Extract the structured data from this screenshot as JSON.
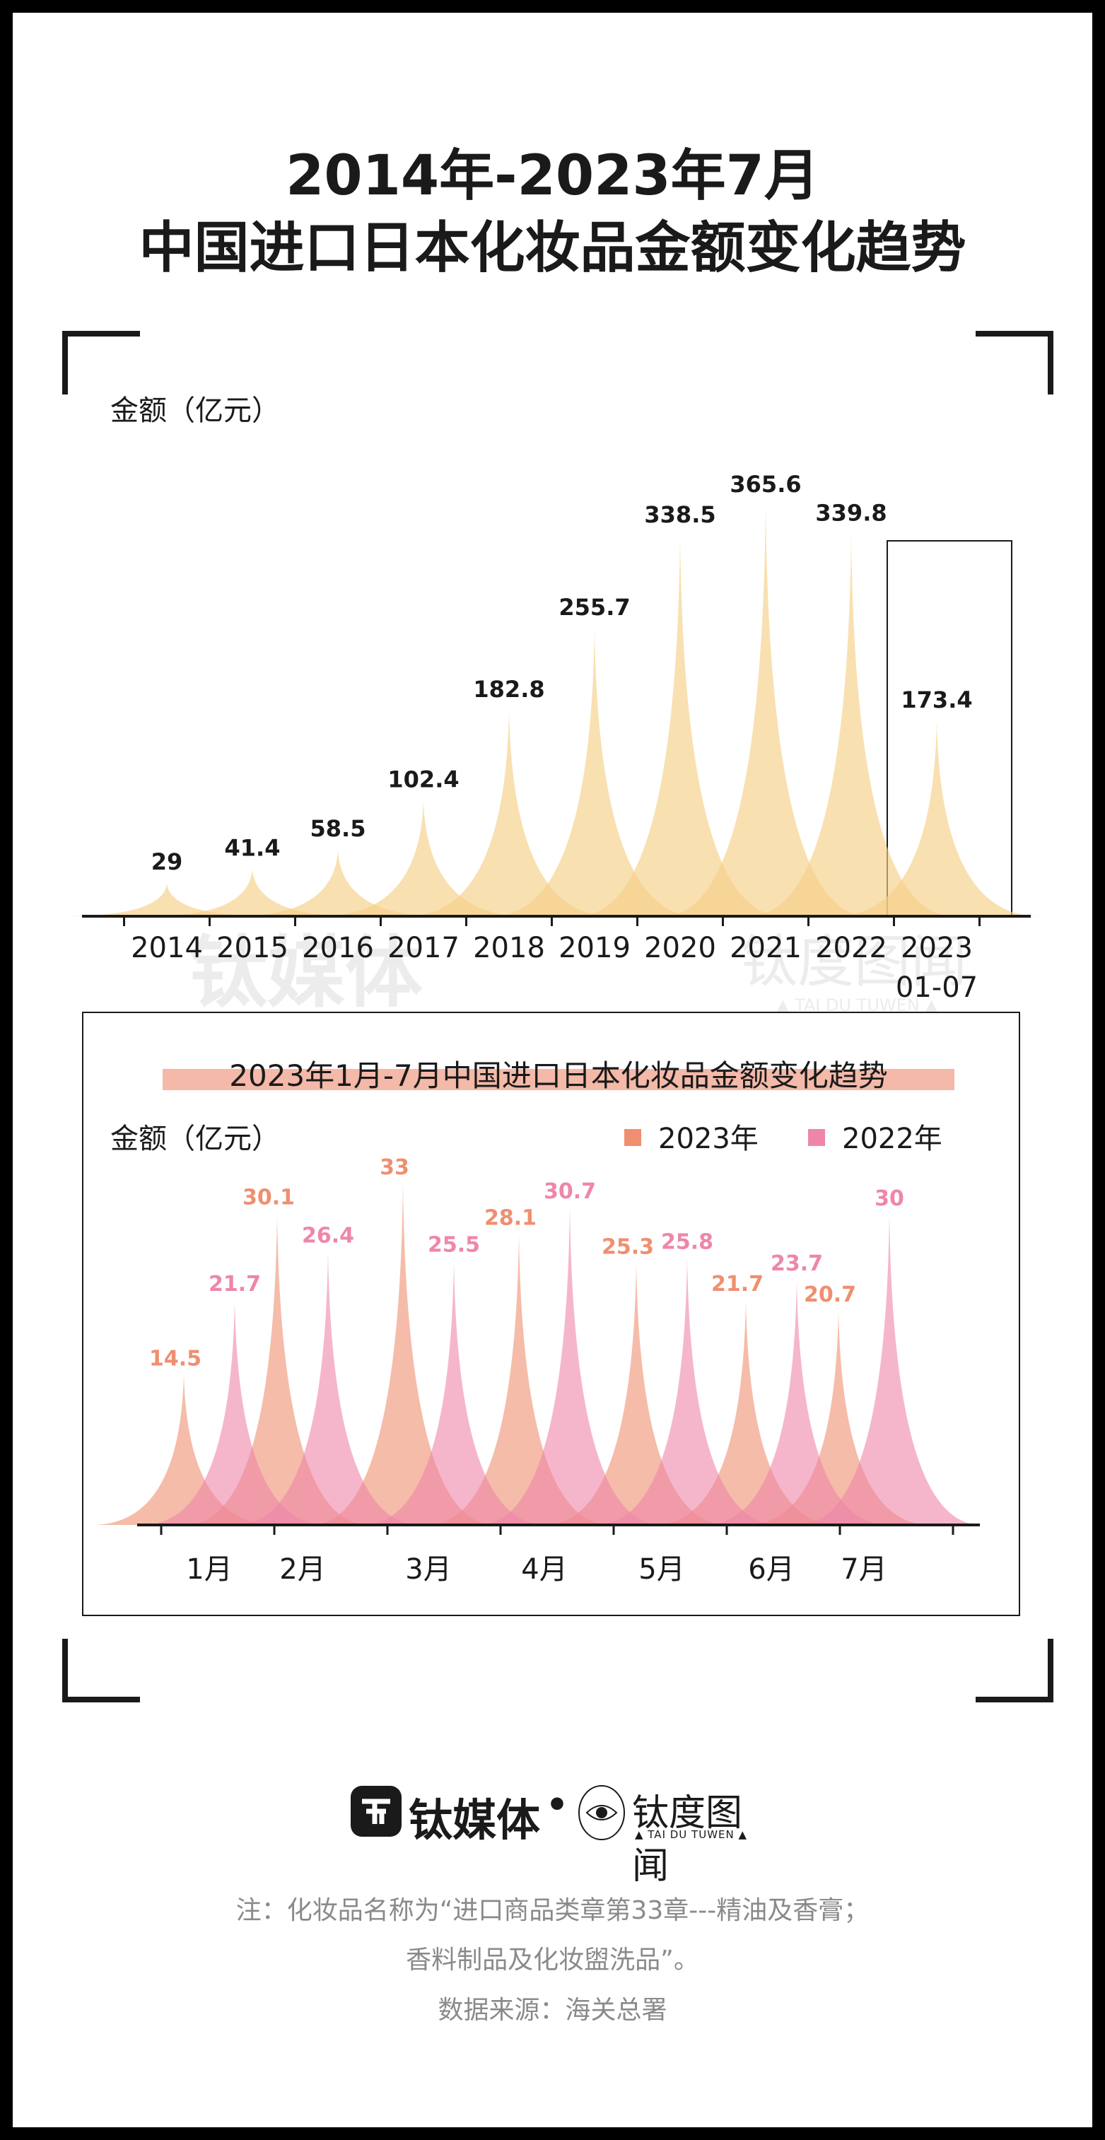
{
  "title_line1": "2014年-2023年7月",
  "title_line2": "中国进口日本化妆品金额变化趋势",
  "chart_data": [
    {
      "type": "area",
      "ylabel": "金额（亿元）",
      "categories": [
        "2014",
        "2015",
        "2016",
        "2017",
        "2018",
        "2019",
        "2020",
        "2021",
        "2022",
        "2023\n01-07"
      ],
      "values": [
        29,
        41.4,
        58.5,
        102.4,
        182.8,
        255.7,
        338.5,
        365.6,
        339.8,
        173.4
      ],
      "highlighted_category": "2023\n01-07",
      "color": "#f6cf87"
    },
    {
      "type": "area",
      "title": "2023年1月-7月中国进口日本化妆品金额变化趋势",
      "ylabel": "金额（亿元）",
      "categories": [
        "1月",
        "2月",
        "3月",
        "4月",
        "5月",
        "6月",
        "7月"
      ],
      "legend_position": "top-right",
      "series": [
        {
          "name": "2023年",
          "values": [
            14.5,
            30.1,
            33,
            28.1,
            25.3,
            21.7,
            20.7
          ],
          "color": "#ef8f70"
        },
        {
          "name": "2022年",
          "values": [
            21.7,
            26.4,
            25.5,
            30.7,
            25.8,
            23.7,
            30
          ],
          "color": "#ef86a8"
        }
      ]
    }
  ],
  "logo": {
    "brand1": "钛媒体",
    "separator": "•",
    "brand2": "钛度图闻",
    "brand2_en": "▲ TAI DU TUWEN ▲"
  },
  "watermark": {
    "brand1": "钛媒体",
    "brand2": "钛度图闻",
    "brand2_en": "▲ TAI DU TUWEN ▲"
  },
  "notes": [
    "注：化妆品名称为“进口商品类章第33章---精油及香膏；",
    "香料制品及化妆盥洗品”。",
    "数据来源：海关总署"
  ],
  "colors": {
    "text": "#1a1a1a",
    "note": "#8a8a8a",
    "highlight": "#f4b9a8"
  }
}
